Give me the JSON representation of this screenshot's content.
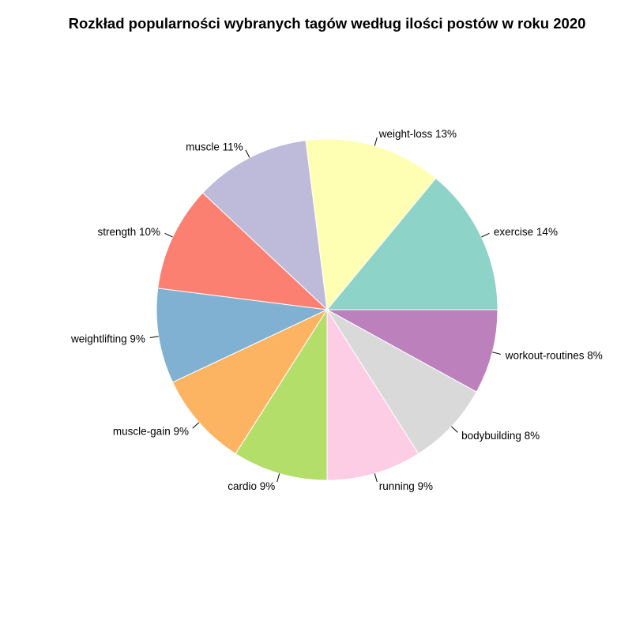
{
  "chart_data": {
    "type": "pie",
    "title": "Rozkład popularności wybranych tagów według ilości postów w roku 2020",
    "start_angle": "0° (3 o'clock), counter-clockwise",
    "slices": [
      {
        "category": "exercise",
        "value": 14,
        "label": "exercise 14%",
        "color": "#8DD3C7"
      },
      {
        "category": "weight-loss",
        "value": 13,
        "label": "weight-loss 13%",
        "color": "#FFFFB3"
      },
      {
        "category": "muscle",
        "value": 11,
        "label": "muscle 11%",
        "color": "#BEBADA"
      },
      {
        "category": "strength",
        "value": 10,
        "label": "strength 10%",
        "color": "#FB8072"
      },
      {
        "category": "weightlifting",
        "value": 9,
        "label": "weightlifting 9%",
        "color": "#80B1D3"
      },
      {
        "category": "muscle-gain",
        "value": 9,
        "label": "muscle-gain 9%",
        "color": "#FDB462"
      },
      {
        "category": "cardio",
        "value": 9,
        "label": "cardio 9%",
        "color": "#B3DE69"
      },
      {
        "category": "running",
        "value": 9,
        "label": "running 9%",
        "color": "#FCCDE5"
      },
      {
        "category": "bodybuilding",
        "value": 8,
        "label": "bodybuilding 8%",
        "color": "#D9D9D9"
      },
      {
        "category": "workout-routines",
        "value": 8,
        "label": "workout-routines 8%",
        "color": "#BC80BD"
      }
    ]
  }
}
